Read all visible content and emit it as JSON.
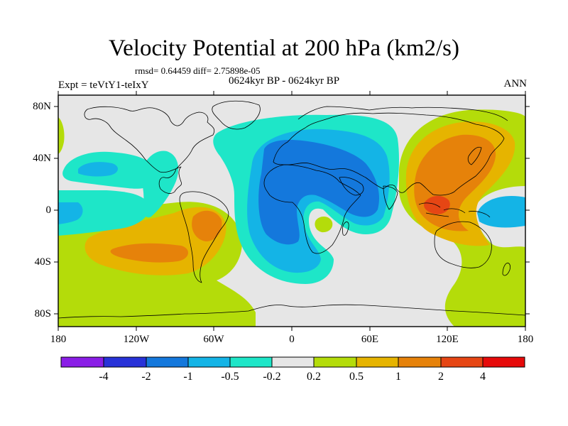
{
  "title": "Velocity Potential at 200 hPa (km2/s)",
  "stats_line": "rmsd= 0.64459 diff= 2.75898e-05",
  "expt_label": "Expt = teVtY1-teIxY",
  "period_label": "0624kyr BP - 0624kyr BP",
  "season_label": "ANN",
  "lat_labels": [
    "80N",
    "40N",
    "0",
    "40S",
    "80S"
  ],
  "lon_labels": [
    "180",
    "120W",
    "60W",
    "0",
    "60E",
    "120E",
    "180"
  ],
  "colorbar": {
    "labels": [
      "-4",
      "-2",
      "-1",
      "-0.5",
      "-0.2",
      "0.2",
      "0.5",
      "1",
      "2",
      "4"
    ],
    "colors": [
      "#8a1ee6",
      "#2832d8",
      "#1478dc",
      "#14b4e6",
      "#1ee6c8",
      "#e6e6e6",
      "#b4dc0a",
      "#e6b400",
      "#e6820a",
      "#e64614",
      "#e60a0a"
    ]
  },
  "map_colors": {
    "neutral": "#e6e6e6",
    "teal": "#1ee6c8",
    "cyan": "#14b4e6",
    "blue": "#1478dc",
    "green": "#b4dc0a",
    "yellow": "#e6b400",
    "orange": "#e6820a",
    "red": "#e64614"
  }
}
